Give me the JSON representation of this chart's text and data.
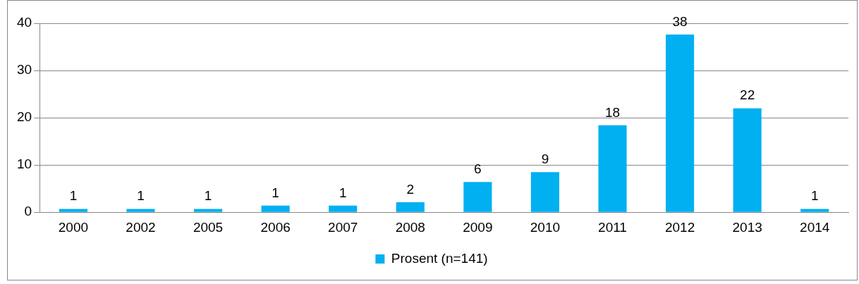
{
  "chart_data": {
    "type": "bar",
    "categories": [
      "2000",
      "2002",
      "2005",
      "2006",
      "2007",
      "2008",
      "2009",
      "2010",
      "2011",
      "2012",
      "2013",
      "2014"
    ],
    "series": [
      {
        "name": "Prosent (n=141)",
        "color": "#00b0f0",
        "values": [
          0.7,
          0.7,
          0.7,
          1.4,
          1.4,
          2.1,
          6.4,
          8.5,
          18.4,
          37.6,
          22.0,
          0.7
        ],
        "value_labels": [
          "1",
          "1",
          "1",
          "1",
          "1",
          "2",
          "6",
          "9",
          "18",
          "38",
          "22",
          "1"
        ]
      }
    ],
    "ylim": [
      0,
      40
    ],
    "yticks": [
      0,
      10,
      20,
      30,
      40
    ],
    "grid": "y",
    "legend": "bottom"
  }
}
